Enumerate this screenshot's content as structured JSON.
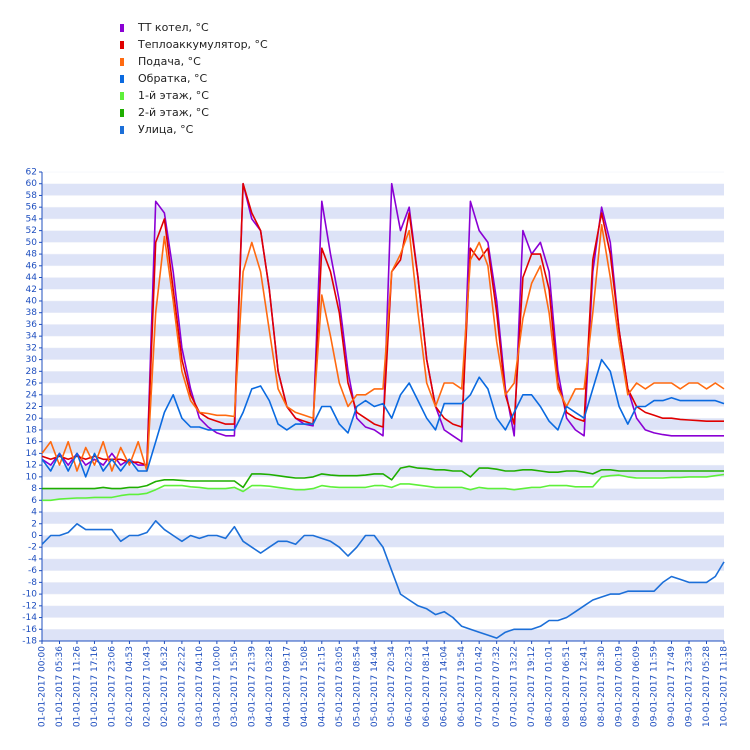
{
  "chart_data": {
    "type": "line",
    "categories": [
      "01-01-2017 00:00",
      null,
      "01-01-2017 05:36",
      null,
      "01-01-2017 11:26",
      null,
      "01-01-2017 17:16",
      null,
      "01-01-2017 23:06",
      null,
      "02-01-2017 04:53",
      null,
      "02-01-2017 10:43",
      null,
      "02-01-2017 16:32",
      null,
      "02-01-2017 22:22",
      null,
      "03-01-2017 04:10",
      null,
      "03-01-2017 10:00",
      null,
      "03-01-2017 15:50",
      null,
      "03-01-2017 21:39",
      null,
      "04-01-2017 03:28",
      null,
      "04-01-2017 09:17",
      null,
      "04-01-2017 15:08",
      null,
      "04-01-2017 21:15",
      null,
      "05-01-2017 03:05",
      null,
      "05-01-2017 08:54",
      null,
      "05-01-2017 14:44",
      null,
      "05-01-2017 20:34",
      null,
      "06-01-2017 02:23",
      null,
      "06-01-2017 08:14",
      null,
      "06-01-2017 14:04",
      null,
      "06-01-2017 19:54",
      null,
      "07-01-2017 01:42",
      null,
      "07-01-2017 07:32",
      null,
      "07-01-2017 13:22",
      null,
      "07-01-2017 19:12",
      null,
      "08-01-2017 01:01",
      null,
      "08-01-2017 06:51",
      null,
      "08-01-2017 12:41",
      null,
      "08-01-2017 18:30",
      null,
      "09-01-2017 00:19",
      null,
      "09-01-2017 06:09",
      null,
      "09-01-2017 11:59",
      null,
      "09-01-2017 17:49",
      null,
      "09-01-2017 23:39",
      null,
      "10-01-2017 05:28",
      null,
      "10-01-2017 11:18"
    ],
    "series": [
      {
        "name": "ТТ котел, °C",
        "color": "#8a00d4",
        "values": [
          13,
          12,
          14,
          12,
          14,
          12,
          13,
          12,
          14,
          12,
          13,
          12,
          12,
          57,
          55,
          45,
          32,
          25,
          20,
          18.5,
          17.5,
          17,
          17,
          60,
          54,
          52,
          42,
          28,
          22,
          20,
          19,
          18.7,
          57,
          48,
          40,
          28,
          20,
          18.5,
          18,
          17,
          60,
          52,
          56,
          44,
          30,
          22,
          18,
          17,
          16,
          57,
          52,
          50,
          40,
          25,
          17,
          52,
          48,
          50,
          45,
          28,
          20,
          18,
          17,
          45,
          56,
          50,
          35,
          25,
          20,
          18,
          17.5,
          17.2,
          17,
          17,
          17,
          17,
          17,
          17,
          17
        ]
      },
      {
        "name": "Теплоаккумулятор, °C",
        "color": "#e00000",
        "values": [
          13.5,
          13,
          13.5,
          13,
          13.5,
          13,
          13.5,
          13,
          13,
          13,
          12.5,
          12.5,
          12,
          50,
          54,
          42,
          30,
          24,
          21,
          20,
          19.5,
          19,
          19,
          60,
          55,
          52,
          42,
          28,
          22,
          20,
          19.5,
          19,
          49,
          45,
          38,
          26,
          21,
          20,
          19,
          18.5,
          45,
          47,
          55,
          44,
          30,
          22,
          20,
          19,
          18.5,
          49,
          47,
          49,
          38,
          24,
          19,
          44,
          48,
          48,
          42,
          26,
          21,
          20,
          19.5,
          47,
          55,
          48,
          35,
          25,
          22,
          21,
          20.5,
          20,
          20,
          19.8,
          19.7,
          19.6,
          19.5,
          19.5,
          19.5
        ]
      },
      {
        "name": "Подача, °C",
        "color": "#ff6a10",
        "values": [
          14,
          16,
          12,
          16,
          11,
          15,
          12,
          16,
          11,
          15,
          12,
          16,
          11,
          38,
          51,
          40,
          28,
          23,
          21,
          20.8,
          20.5,
          20.5,
          20.3,
          45,
          50,
          45,
          35,
          25,
          22,
          21,
          20.5,
          20,
          41,
          34,
          26,
          22,
          24,
          24,
          25,
          25,
          45,
          48,
          52,
          38,
          26,
          22,
          26,
          26,
          25,
          47,
          50,
          46,
          33,
          24,
          26,
          37,
          43,
          46,
          38,
          25,
          22,
          25,
          25,
          38,
          53,
          44,
          33,
          24,
          26,
          25,
          26,
          26,
          26,
          25,
          26,
          26,
          25,
          26,
          25
        ]
      },
      {
        "name": "Обратка, °C",
        "color": "#0a6ae0",
        "values": [
          13,
          11,
          14,
          11,
          14,
          10,
          14,
          11,
          13,
          11,
          13,
          11,
          11,
          16,
          21,
          24,
          20,
          18.5,
          18.5,
          18,
          18,
          18,
          18,
          21,
          25,
          25.5,
          23,
          19,
          18,
          19,
          19,
          19,
          22,
          22,
          19,
          17.5,
          22,
          23,
          22,
          22.5,
          20,
          24,
          26,
          23,
          20,
          18,
          22.5,
          22.5,
          22.5,
          24,
          27,
          25,
          20,
          18,
          21,
          24,
          24,
          22,
          19.5,
          18,
          22,
          21,
          20,
          25,
          30,
          28,
          22,
          19,
          22,
          22,
          23,
          23,
          23.5,
          23,
          23,
          23,
          23,
          23,
          22.5
        ]
      },
      {
        "name": "1-й этаж, °C",
        "color": "#5ef03a",
        "values": [
          6,
          6,
          6.2,
          6.3,
          6.4,
          6.4,
          6.5,
          6.5,
          6.5,
          6.8,
          7,
          7,
          7.2,
          7.8,
          8.5,
          8.5,
          8.5,
          8.3,
          8.2,
          8,
          8,
          8,
          8.2,
          7.5,
          8.5,
          8.5,
          8.4,
          8.2,
          8,
          7.8,
          7.8,
          8,
          8.5,
          8.3,
          8.2,
          8.2,
          8.2,
          8.2,
          8.5,
          8.5,
          8.2,
          8.8,
          8.8,
          8.6,
          8.4,
          8.2,
          8.2,
          8.2,
          8.2,
          7.8,
          8.2,
          8,
          8,
          8,
          7.8,
          8,
          8.2,
          8.2,
          8.5,
          8.5,
          8.5,
          8.3,
          8.3,
          8.3,
          10,
          10.2,
          10.3,
          10,
          9.8,
          9.8,
          9.8,
          9.8,
          9.9,
          9.9,
          10,
          10,
          10,
          10.2,
          10.4
        ]
      },
      {
        "name": "2-й этаж, °C",
        "color": "#1fae00",
        "values": [
          8,
          8,
          8,
          8,
          8,
          8,
          8,
          8.2,
          8,
          8,
          8.2,
          8.2,
          8.5,
          9.2,
          9.5,
          9.5,
          9.4,
          9.3,
          9.3,
          9.3,
          9.3,
          9.3,
          9.3,
          8.2,
          10.5,
          10.5,
          10.4,
          10.2,
          10,
          9.8,
          9.8,
          10,
          10.5,
          10.3,
          10.2,
          10.2,
          10.2,
          10.3,
          10.5,
          10.5,
          9.5,
          11.5,
          11.8,
          11.5,
          11.4,
          11.2,
          11.2,
          11,
          11,
          10,
          11.5,
          11.5,
          11.3,
          11,
          11,
          11.2,
          11.2,
          11,
          10.8,
          10.8,
          11,
          11,
          10.8,
          10.5,
          11.2,
          11.2,
          11,
          11,
          11,
          11,
          11,
          11,
          11,
          11,
          11,
          11,
          11,
          11,
          11
        ]
      },
      {
        "name": "Улица, °C",
        "color": "#1c6fd8",
        "values": [
          -1.5,
          0,
          0,
          0.5,
          2,
          1,
          1,
          1,
          1,
          -1,
          0,
          0,
          0.5,
          2.5,
          1,
          0,
          -1,
          0,
          -0.5,
          0,
          0,
          -0.5,
          1.5,
          -1,
          -2,
          -3,
          -2,
          -1,
          -1,
          -1.5,
          0,
          0,
          -0.5,
          -1,
          -2,
          -3.5,
          -2,
          0,
          0,
          -2,
          -6,
          -10,
          -11,
          -12,
          -12.5,
          -13.5,
          -13,
          -14,
          -15.5,
          -16,
          -16.5,
          -17,
          -17.5,
          -16.5,
          -16,
          -16,
          -16,
          -15.5,
          -14.5,
          -14.5,
          -14,
          -13,
          -12,
          -11,
          -10.5,
          -10,
          -10,
          -9.5,
          -9.5,
          -9.5,
          -9.5,
          -8,
          -7,
          -7.5,
          -8,
          -8,
          -8,
          -7,
          -4.5
        ]
      }
    ],
    "ylim": [
      -18,
      62
    ],
    "yticks": [
      -18,
      -16,
      -14,
      -12,
      -10,
      -8,
      -6,
      -4,
      -2,
      0,
      2,
      4,
      6,
      8,
      10,
      12,
      14,
      16,
      18,
      20,
      22,
      24,
      26,
      28,
      30,
      32,
      34,
      36,
      38,
      40,
      42,
      44,
      46,
      48,
      50,
      52,
      54,
      56,
      58,
      60,
      62
    ],
    "grid": true
  }
}
